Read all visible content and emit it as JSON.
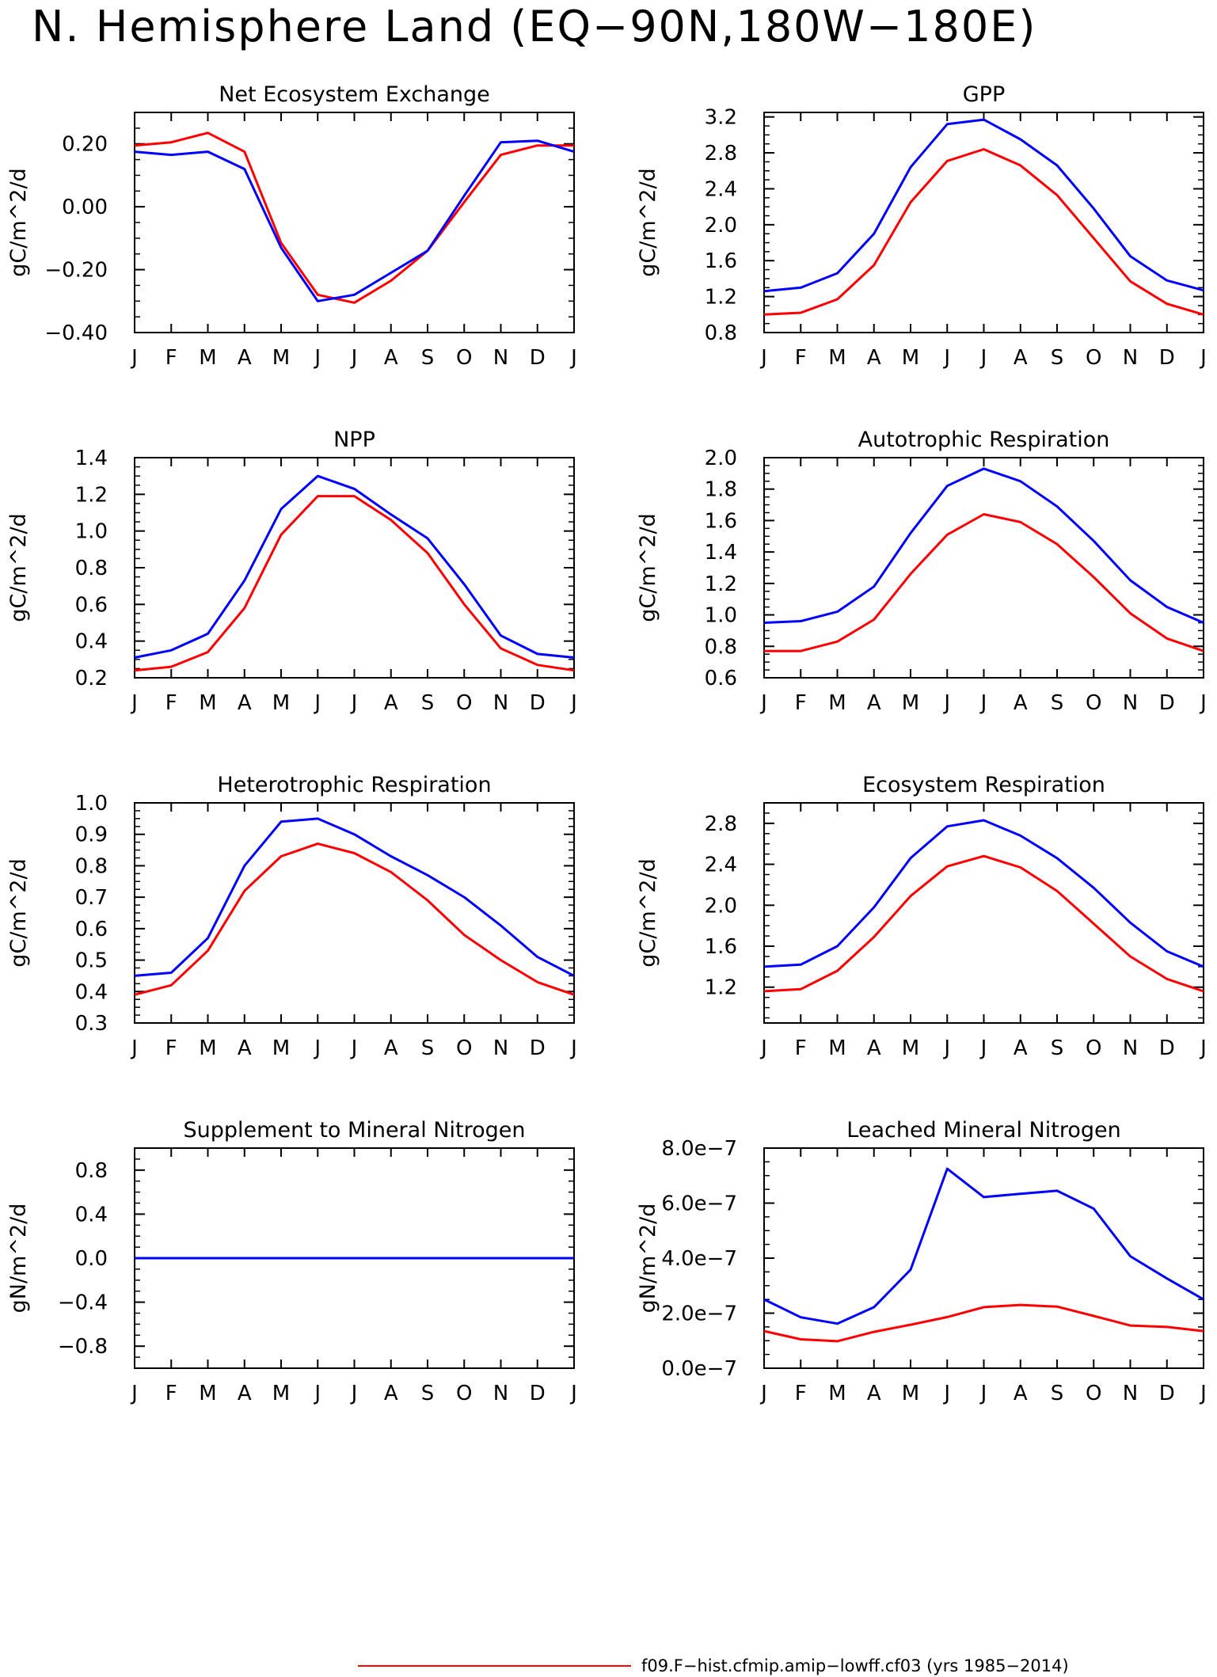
{
  "figure": {
    "title": "N. Hemisphere Land (EQ−90N,180W−180E)"
  },
  "legend": [
    {
      "label": "f09.F−hist.cfmip.amip−lowff.cf03 (yrs 1985−2014)",
      "color": "#ff0000"
    }
  ],
  "chart_data": [
    {
      "type": "line",
      "title": "Net Ecosystem Exchange",
      "ylabel": "gC/m^2/d",
      "categories": [
        "J",
        "F",
        "M",
        "A",
        "M",
        "J",
        "J",
        "A",
        "S",
        "O",
        "N",
        "D",
        "J"
      ],
      "ylim": [
        -0.4,
        0.3
      ],
      "yticks": [
        -0.4,
        -0.2,
        0.0,
        0.2
      ],
      "ytick_labels": [
        "−0.40",
        "−0.20",
        "0.00",
        "0.20"
      ],
      "series": [
        {
          "color": "#ff0000",
          "values": [
            0.195,
            0.205,
            0.235,
            0.175,
            -0.115,
            -0.28,
            -0.305,
            -0.235,
            -0.14,
            0.015,
            0.165,
            0.195,
            0.195
          ]
        },
        {
          "color": "#0000ff",
          "values": [
            0.175,
            0.165,
            0.175,
            0.12,
            -0.13,
            -0.3,
            -0.28,
            -0.21,
            -0.14,
            0.035,
            0.205,
            0.21,
            0.175
          ]
        }
      ]
    },
    {
      "type": "line",
      "title": "GPP",
      "ylabel": "gC/m^2/d",
      "categories": [
        "J",
        "F",
        "M",
        "A",
        "M",
        "J",
        "J",
        "A",
        "S",
        "O",
        "N",
        "D",
        "J"
      ],
      "ylim": [
        0.8,
        3.25
      ],
      "yticks": [
        0.8,
        1.2,
        1.6,
        2.0,
        2.4,
        2.8,
        3.2
      ],
      "ytick_labels": [
        "0.8",
        "1.2",
        "1.6",
        "2.0",
        "2.4",
        "2.8",
        "3.2"
      ],
      "series": [
        {
          "color": "#ff0000",
          "values": [
            1.0,
            1.02,
            1.17,
            1.55,
            2.25,
            2.71,
            2.84,
            2.66,
            2.33,
            1.85,
            1.37,
            1.12,
            1.0
          ]
        },
        {
          "color": "#0000ff",
          "values": [
            1.26,
            1.3,
            1.46,
            1.9,
            2.64,
            3.12,
            3.17,
            2.95,
            2.66,
            2.18,
            1.65,
            1.38,
            1.27
          ]
        }
      ]
    },
    {
      "type": "line",
      "title": "NPP",
      "ylabel": "gC/m^2/d",
      "categories": [
        "J",
        "F",
        "M",
        "A",
        "M",
        "J",
        "J",
        "A",
        "S",
        "O",
        "N",
        "D",
        "J"
      ],
      "ylim": [
        0.2,
        1.4
      ],
      "yticks": [
        0.2,
        0.4,
        0.6,
        0.8,
        1.0,
        1.2,
        1.4
      ],
      "ytick_labels": [
        "0.2",
        "0.4",
        "0.6",
        "0.8",
        "1.0",
        "1.2",
        "1.4"
      ],
      "series": [
        {
          "color": "#ff0000",
          "values": [
            0.24,
            0.26,
            0.34,
            0.58,
            0.98,
            1.19,
            1.19,
            1.06,
            0.88,
            0.6,
            0.36,
            0.27,
            0.24
          ]
        },
        {
          "color": "#0000ff",
          "values": [
            0.31,
            0.35,
            0.44,
            0.73,
            1.12,
            1.3,
            1.23,
            1.09,
            0.96,
            0.71,
            0.43,
            0.33,
            0.31
          ]
        }
      ]
    },
    {
      "type": "line",
      "title": "Autotrophic Respiration",
      "ylabel": "gC/m^2/d",
      "categories": [
        "J",
        "F",
        "M",
        "A",
        "M",
        "J",
        "J",
        "A",
        "S",
        "O",
        "N",
        "D",
        "J"
      ],
      "ylim": [
        0.6,
        2.0
      ],
      "yticks": [
        0.6,
        0.8,
        1.0,
        1.2,
        1.4,
        1.6,
        1.8,
        2.0
      ],
      "ytick_labels": [
        "0.6",
        "0.8",
        "1.0",
        "1.2",
        "1.4",
        "1.6",
        "1.8",
        "2.0"
      ],
      "series": [
        {
          "color": "#ff0000",
          "values": [
            0.77,
            0.77,
            0.83,
            0.97,
            1.26,
            1.51,
            1.64,
            1.59,
            1.45,
            1.24,
            1.01,
            0.85,
            0.77
          ]
        },
        {
          "color": "#0000ff",
          "values": [
            0.95,
            0.96,
            1.02,
            1.18,
            1.52,
            1.82,
            1.93,
            1.85,
            1.69,
            1.47,
            1.22,
            1.05,
            0.95
          ]
        }
      ]
    },
    {
      "type": "line",
      "title": "Heterotrophic Respiration",
      "ylabel": "gC/m^2/d",
      "categories": [
        "J",
        "F",
        "M",
        "A",
        "M",
        "J",
        "J",
        "A",
        "S",
        "O",
        "N",
        "D",
        "J"
      ],
      "ylim": [
        0.3,
        1.0
      ],
      "yticks": [
        0.3,
        0.4,
        0.5,
        0.6,
        0.7,
        0.8,
        0.9,
        1.0
      ],
      "ytick_labels": [
        "0.3",
        "0.4",
        "0.5",
        "0.6",
        "0.7",
        "0.8",
        "0.9",
        "1.0"
      ],
      "series": [
        {
          "color": "#ff0000",
          "values": [
            0.39,
            0.42,
            0.53,
            0.72,
            0.83,
            0.87,
            0.84,
            0.78,
            0.69,
            0.58,
            0.5,
            0.43,
            0.39
          ]
        },
        {
          "color": "#0000ff",
          "values": [
            0.45,
            0.46,
            0.57,
            0.8,
            0.94,
            0.95,
            0.9,
            0.83,
            0.77,
            0.7,
            0.61,
            0.51,
            0.45
          ]
        }
      ]
    },
    {
      "type": "line",
      "title": "Ecosystem Respiration",
      "ylabel": "gC/m^2/d",
      "categories": [
        "J",
        "F",
        "M",
        "A",
        "M",
        "J",
        "J",
        "A",
        "S",
        "O",
        "N",
        "D",
        "J"
      ],
      "ylim": [
        0.85,
        3.0
      ],
      "yticks": [
        1.2,
        1.6,
        2.0,
        2.4,
        2.8
      ],
      "ytick_labels": [
        "1.2",
        "1.6",
        "2.0",
        "2.4",
        "2.8"
      ],
      "series": [
        {
          "color": "#ff0000",
          "values": [
            1.16,
            1.18,
            1.36,
            1.69,
            2.09,
            2.38,
            2.48,
            2.37,
            2.14,
            1.82,
            1.5,
            1.28,
            1.16
          ]
        },
        {
          "color": "#0000ff",
          "values": [
            1.4,
            1.42,
            1.6,
            1.98,
            2.46,
            2.77,
            2.83,
            2.68,
            2.46,
            2.17,
            1.83,
            1.55,
            1.4
          ]
        }
      ]
    },
    {
      "type": "line",
      "title": "Supplement to Mineral Nitrogen",
      "ylabel": "gN/m^2/d",
      "categories": [
        "J",
        "F",
        "M",
        "A",
        "M",
        "J",
        "J",
        "A",
        "S",
        "O",
        "N",
        "D",
        "J"
      ],
      "ylim": [
        -1.0,
        1.0
      ],
      "yticks": [
        -0.8,
        -0.4,
        0.0,
        0.4,
        0.8
      ],
      "ytick_labels": [
        "−0.8",
        "−0.4",
        "0.0",
        "0.4",
        "0.8"
      ],
      "series": [
        {
          "color": "#ff0000",
          "values": [
            0,
            0,
            0,
            0,
            0,
            0,
            0,
            0,
            0,
            0,
            0,
            0,
            0
          ]
        },
        {
          "color": "#0000ff",
          "values": [
            0,
            0,
            0,
            0,
            0,
            0,
            0,
            0,
            0,
            0,
            0,
            0,
            0
          ]
        }
      ]
    },
    {
      "type": "line",
      "title": "Leached Mineral Nitrogen",
      "ylabel": "gN/m^2/d",
      "categories": [
        "J",
        "F",
        "M",
        "A",
        "M",
        "J",
        "J",
        "A",
        "S",
        "O",
        "N",
        "D",
        "J"
      ],
      "ylim": [
        0,
        8e-07
      ],
      "yticks": [
        0,
        2e-07,
        4e-07,
        6e-07,
        8e-07
      ],
      "ytick_labels": [
        "0.0e−7",
        "2.0e−7",
        "4.0e−7",
        "6.0e−7",
        "8.0e−7"
      ],
      "series": [
        {
          "color": "#ff0000",
          "values": [
            1.35e-07,
            1.05e-07,
            9.8e-08,
            1.32e-07,
            1.58e-07,
            1.86e-07,
            2.22e-07,
            2.3e-07,
            2.24e-07,
            1.9e-07,
            1.55e-07,
            1.5e-07,
            1.35e-07
          ]
        },
        {
          "color": "#0000ff",
          "values": [
            2.5e-07,
            1.85e-07,
            1.62e-07,
            2.22e-07,
            3.58e-07,
            7.25e-07,
            6.22e-07,
            6.34e-07,
            6.45e-07,
            5.8e-07,
            4.07e-07,
            3.26e-07,
            2.5e-07
          ]
        }
      ]
    }
  ]
}
